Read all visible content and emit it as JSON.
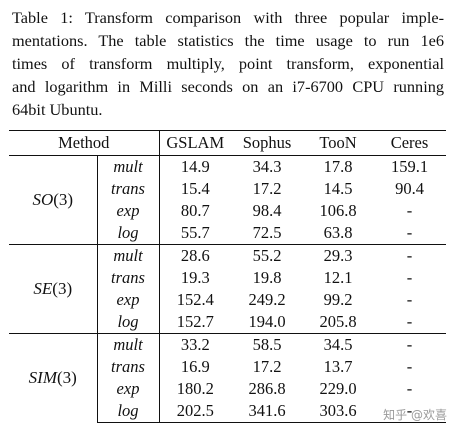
{
  "caption": [
    "Table 1: Transform comparison with three popular imple-",
    "mentations. The table statistics the time usage to run 1e6",
    "times of transform multiply, point transform, exponential",
    "and logarithm in Milli seconds on an i7-6700 CPU running",
    "64bit Ubuntu."
  ],
  "table": {
    "header": {
      "method": "Method",
      "gslam": "GSLAM",
      "sophus": "Sophus",
      "toon": "TooN",
      "ceres": "Ceres"
    },
    "groups": [
      {
        "name_italic": "SO",
        "name_num": "(3)",
        "rows": [
          {
            "op": "mult",
            "gslam": "14.9",
            "sophus": "34.3",
            "toon": "17.8",
            "ceres": "159.1"
          },
          {
            "op": "trans",
            "gslam": "15.4",
            "sophus": "17.2",
            "toon": "14.5",
            "ceres": "90.4"
          },
          {
            "op": "exp",
            "gslam": "80.7",
            "sophus": "98.4",
            "toon": "106.8",
            "ceres": "-"
          },
          {
            "op": "log",
            "gslam": "55.7",
            "sophus": "72.5",
            "toon": "63.8",
            "ceres": "-"
          }
        ]
      },
      {
        "name_italic": "SE",
        "name_num": "(3)",
        "rows": [
          {
            "op": "mult",
            "gslam": "28.6",
            "sophus": "55.2",
            "toon": "29.3",
            "ceres": "-"
          },
          {
            "op": "trans",
            "gslam": "19.3",
            "sophus": "19.8",
            "toon": "12.1",
            "ceres": "-"
          },
          {
            "op": "exp",
            "gslam": "152.4",
            "sophus": "249.2",
            "toon": "99.2",
            "ceres": "-"
          },
          {
            "op": "log",
            "gslam": "152.7",
            "sophus": "194.0",
            "toon": "205.8",
            "ceres": "-"
          }
        ]
      },
      {
        "name_italic": "SIM",
        "name_num": "(3)",
        "rows": [
          {
            "op": "mult",
            "gslam": "33.2",
            "sophus": "58.5",
            "toon": "34.5",
            "ceres": "-"
          },
          {
            "op": "trans",
            "gslam": "16.9",
            "sophus": "17.2",
            "toon": "13.7",
            "ceres": "-"
          },
          {
            "op": "exp",
            "gslam": "180.2",
            "sophus": "286.8",
            "toon": "229.0",
            "ceres": "-"
          },
          {
            "op": "log",
            "gslam": "202.5",
            "sophus": "341.6",
            "toon": "303.6",
            "ceres": "-"
          }
        ]
      }
    ]
  },
  "watermark": "知乎 @欢喜"
}
